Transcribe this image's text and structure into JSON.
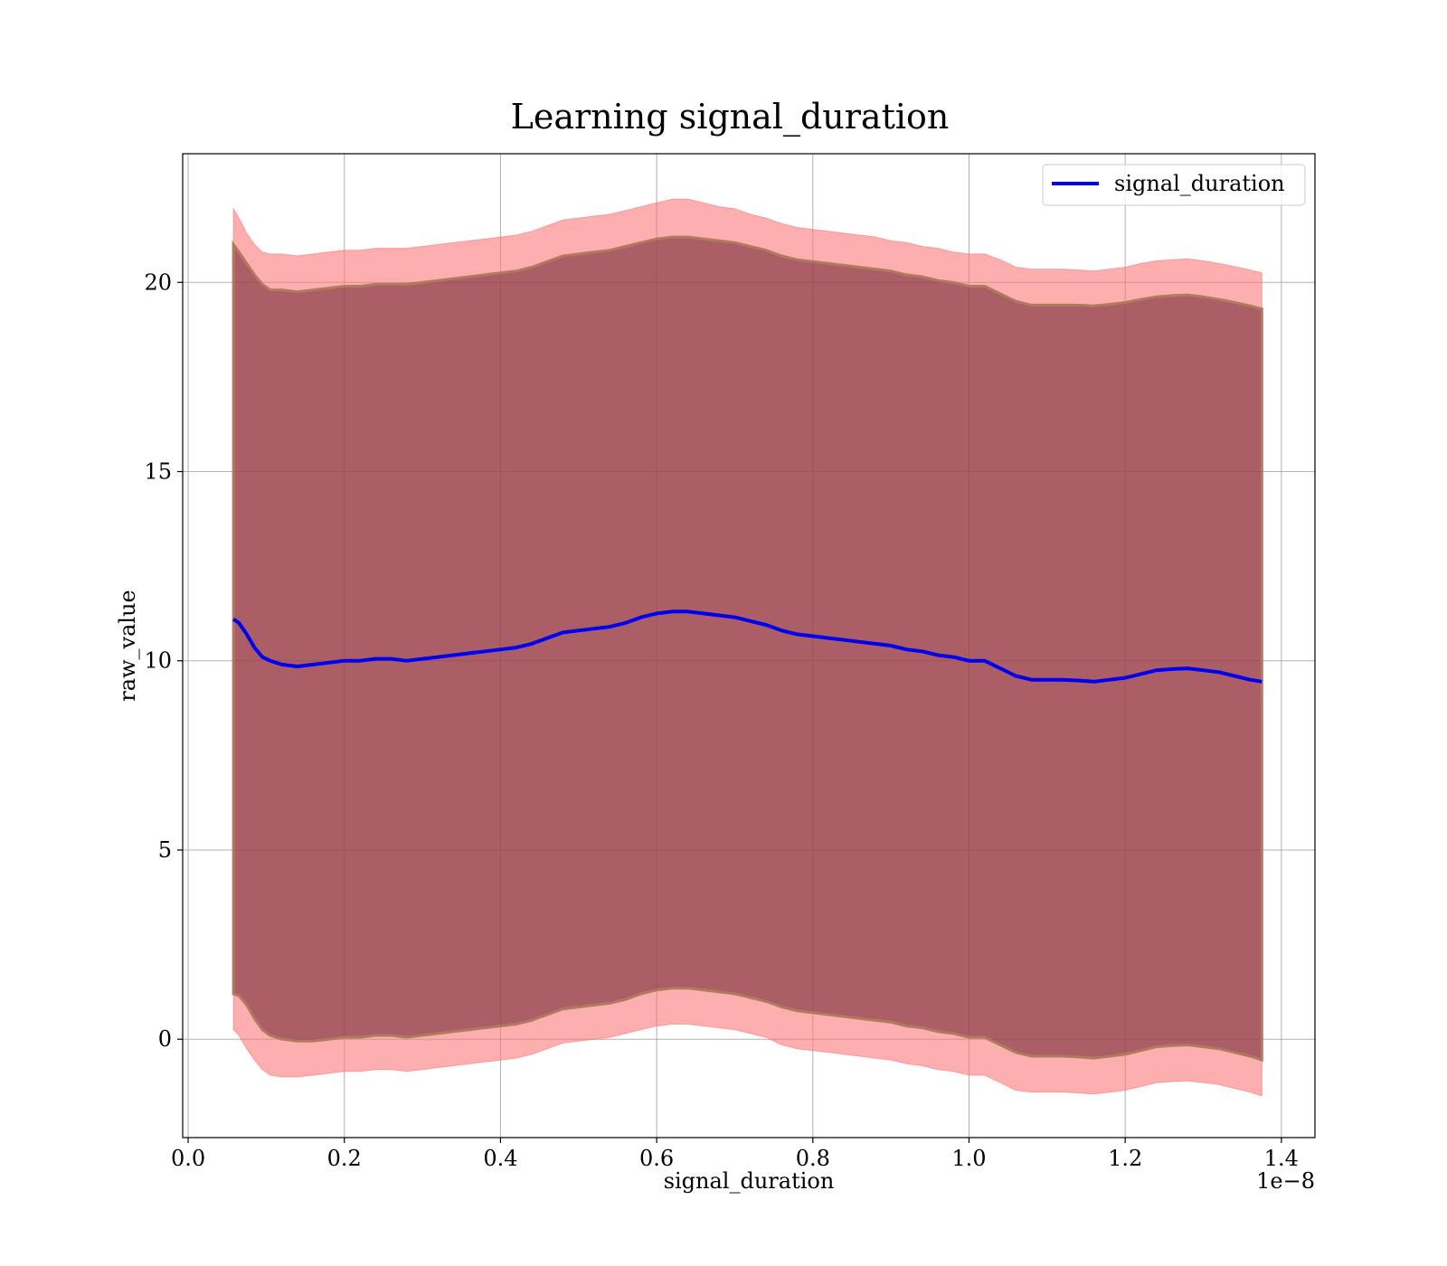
{
  "chart_data": {
    "type": "area",
    "title": "Learning signal_duration",
    "xlabel": "signal_duration",
    "ylabel": "raw_value",
    "x_offset_label": "1e−8",
    "xlim": [
      -0.007,
      1.443
    ],
    "ylim": [
      -2.6,
      23.4
    ],
    "x_ticks": [
      0.0,
      0.2,
      0.4,
      0.6,
      0.8,
      1.0,
      1.2,
      1.4
    ],
    "x_tick_labels": [
      "0.0",
      "0.2",
      "0.4",
      "0.6",
      "0.8",
      "1.0",
      "1.2",
      "1.4"
    ],
    "y_ticks": [
      0,
      5,
      10,
      15,
      20
    ],
    "y_tick_labels": [
      "0",
      "5",
      "10",
      "15",
      "20"
    ],
    "grid": true,
    "legend_position": "top-right",
    "legend_labels": [
      "signal_duration"
    ],
    "colors": {
      "mean_line": "#0000ee",
      "outer_band": "#fb7676",
      "inner_band": "#7a2d3c",
      "grid": "#b0b0b0",
      "axes": "#000000"
    },
    "x": [
      0.058,
      0.065,
      0.075,
      0.085,
      0.095,
      0.105,
      0.12,
      0.14,
      0.16,
      0.18,
      0.2,
      0.22,
      0.24,
      0.26,
      0.28,
      0.3,
      0.32,
      0.34,
      0.36,
      0.38,
      0.4,
      0.42,
      0.44,
      0.46,
      0.48,
      0.5,
      0.52,
      0.54,
      0.56,
      0.58,
      0.6,
      0.62,
      0.64,
      0.66,
      0.68,
      0.7,
      0.72,
      0.74,
      0.76,
      0.78,
      0.8,
      0.82,
      0.84,
      0.86,
      0.88,
      0.9,
      0.92,
      0.94,
      0.96,
      0.98,
      1.0,
      1.02,
      1.04,
      1.06,
      1.08,
      1.1,
      1.12,
      1.14,
      1.16,
      1.18,
      1.2,
      1.22,
      1.24,
      1.26,
      1.28,
      1.3,
      1.32,
      1.34,
      1.36,
      1.375
    ],
    "series": [
      {
        "name": "signal_duration",
        "values": [
          11.1,
          11.0,
          10.7,
          10.35,
          10.1,
          10.0,
          9.9,
          9.85,
          9.9,
          9.95,
          10.0,
          10.0,
          10.05,
          10.05,
          10.0,
          10.05,
          10.1,
          10.15,
          10.2,
          10.25,
          10.3,
          10.35,
          10.45,
          10.6,
          10.75,
          10.8,
          10.85,
          10.9,
          11.0,
          11.15,
          11.25,
          11.3,
          11.3,
          11.25,
          11.2,
          11.15,
          11.05,
          10.95,
          10.8,
          10.7,
          10.65,
          10.6,
          10.55,
          10.5,
          10.45,
          10.4,
          10.3,
          10.25,
          10.15,
          10.1,
          10.0,
          10.0,
          9.8,
          9.6,
          9.5,
          9.5,
          9.5,
          9.48,
          9.45,
          9.5,
          9.55,
          9.65,
          9.75,
          9.78,
          9.8,
          9.75,
          9.7,
          9.6,
          9.5,
          9.45
        ]
      }
    ],
    "inner_upper": [
      21.0,
      20.8,
      20.5,
      20.2,
      19.95,
      19.8,
      19.8,
      19.75,
      19.8,
      19.85,
      19.9,
      19.9,
      19.95,
      19.95,
      19.95,
      20.0,
      20.05,
      20.1,
      20.15,
      20.2,
      20.25,
      20.3,
      20.4,
      20.55,
      20.7,
      20.75,
      20.8,
      20.85,
      20.95,
      21.05,
      21.15,
      21.2,
      21.2,
      21.15,
      21.1,
      21.05,
      20.95,
      20.85,
      20.7,
      20.6,
      20.55,
      20.5,
      20.45,
      20.4,
      20.35,
      20.3,
      20.2,
      20.15,
      20.05,
      20.0,
      19.9,
      19.9,
      19.7,
      19.5,
      19.4,
      19.4,
      19.4,
      19.4,
      19.38,
      19.42,
      19.47,
      19.55,
      19.62,
      19.65,
      19.67,
      19.62,
      19.55,
      19.47,
      19.38,
      19.3
    ],
    "inner_lower": [
      1.2,
      1.15,
      0.9,
      0.55,
      0.25,
      0.1,
      0.0,
      -0.05,
      -0.05,
      0.0,
      0.05,
      0.05,
      0.1,
      0.1,
      0.05,
      0.1,
      0.15,
      0.2,
      0.25,
      0.3,
      0.35,
      0.4,
      0.5,
      0.65,
      0.8,
      0.85,
      0.9,
      0.95,
      1.05,
      1.2,
      1.3,
      1.35,
      1.35,
      1.3,
      1.25,
      1.2,
      1.1,
      1.0,
      0.85,
      0.75,
      0.7,
      0.65,
      0.6,
      0.55,
      0.5,
      0.45,
      0.35,
      0.3,
      0.2,
      0.15,
      0.05,
      0.05,
      -0.15,
      -0.35,
      -0.45,
      -0.45,
      -0.45,
      -0.47,
      -0.5,
      -0.45,
      -0.4,
      -0.3,
      -0.2,
      -0.17,
      -0.15,
      -0.2,
      -0.25,
      -0.35,
      -0.45,
      -0.55
    ],
    "outer_upper": [
      21.95,
      21.7,
      21.3,
      21.0,
      20.8,
      20.75,
      20.75,
      20.7,
      20.75,
      20.8,
      20.85,
      20.85,
      20.9,
      20.9,
      20.9,
      20.95,
      21.0,
      21.05,
      21.1,
      21.15,
      21.2,
      21.25,
      21.35,
      21.5,
      21.65,
      21.7,
      21.75,
      21.8,
      21.9,
      22.0,
      22.1,
      22.2,
      22.2,
      22.1,
      22.0,
      21.95,
      21.8,
      21.7,
      21.55,
      21.45,
      21.4,
      21.35,
      21.3,
      21.25,
      21.2,
      21.1,
      21.05,
      20.95,
      20.9,
      20.8,
      20.75,
      20.75,
      20.6,
      20.4,
      20.35,
      20.35,
      20.35,
      20.33,
      20.3,
      20.35,
      20.4,
      20.5,
      20.57,
      20.6,
      20.62,
      20.57,
      20.5,
      20.42,
      20.33,
      20.25
    ],
    "outer_lower": [
      0.25,
      0.1,
      -0.25,
      -0.55,
      -0.8,
      -0.95,
      -1.0,
      -1.0,
      -0.95,
      -0.9,
      -0.85,
      -0.85,
      -0.8,
      -0.8,
      -0.85,
      -0.8,
      -0.75,
      -0.7,
      -0.65,
      -0.6,
      -0.55,
      -0.5,
      -0.4,
      -0.25,
      -0.1,
      -0.05,
      0.0,
      0.05,
      0.15,
      0.25,
      0.35,
      0.4,
      0.4,
      0.35,
      0.3,
      0.25,
      0.15,
      0.05,
      -0.15,
      -0.25,
      -0.3,
      -0.35,
      -0.4,
      -0.45,
      -0.5,
      -0.55,
      -0.65,
      -0.7,
      -0.8,
      -0.85,
      -0.95,
      -0.95,
      -1.15,
      -1.35,
      -1.4,
      -1.4,
      -1.4,
      -1.42,
      -1.45,
      -1.4,
      -1.35,
      -1.25,
      -1.15,
      -1.12,
      -1.1,
      -1.15,
      -1.2,
      -1.3,
      -1.4,
      -1.5
    ]
  }
}
